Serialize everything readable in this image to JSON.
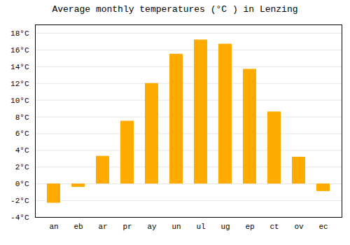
{
  "chart_data": {
    "type": "bar",
    "title": "Average monthly temperatures (°C ) in Lenzing",
    "categories": [
      "an",
      "eb",
      "ar",
      "pr",
      "ay",
      "un",
      "ul",
      "ug",
      "ep",
      "ct",
      "ov",
      "ec"
    ],
    "values": [
      -2.3,
      -0.4,
      3.3,
      7.5,
      12.0,
      15.5,
      17.2,
      16.7,
      13.7,
      8.6,
      3.2,
      -0.9
    ],
    "color": "#FFAA00",
    "ylim": [
      -4,
      19
    ],
    "yticks": [
      {
        "value": -4,
        "label": "-4°C"
      },
      {
        "value": -2,
        "label": "-2°C"
      },
      {
        "value": 0,
        "label": "0°C"
      },
      {
        "value": 2,
        "label": "2°C"
      },
      {
        "value": 4,
        "label": "4°C"
      },
      {
        "value": 6,
        "label": "6°C"
      },
      {
        "value": 8,
        "label": "8°C"
      },
      {
        "value": 10,
        "label": "10°C"
      },
      {
        "value": 12,
        "label": "12°C"
      },
      {
        "value": 14,
        "label": "14°C"
      },
      {
        "value": 16,
        "label": "16°C"
      },
      {
        "value": 18,
        "label": "18°C"
      }
    ],
    "grid": true
  }
}
